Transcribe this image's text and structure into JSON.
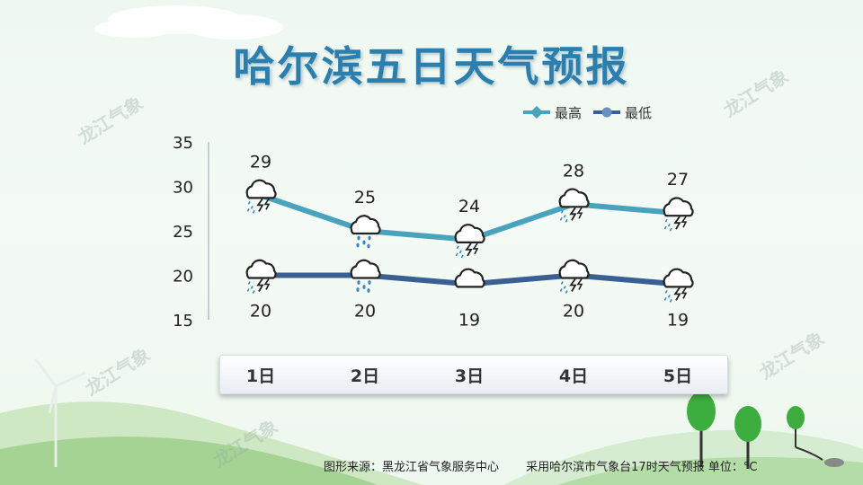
{
  "title": "哈尔滨五日天气预报",
  "watermark": "龙江气象",
  "footer": {
    "source": "图形来源：黑龙江省气象服务中心",
    "note": "采用哈尔滨市气象台17时天气预报 单位：°C"
  },
  "chart_data": {
    "type": "line",
    "categories": [
      "1日",
      "2日",
      "3日",
      "4日",
      "5日"
    ],
    "ylim": [
      15,
      35
    ],
    "yticks": [
      15,
      20,
      25,
      30,
      35
    ],
    "legend_position": "top-right",
    "series": [
      {
        "name": "最高",
        "values": [
          29,
          25,
          24,
          28,
          27
        ],
        "color": "#4aa3bd",
        "weather_icons": [
          "thunderstorm-icon",
          "rain-icon",
          "thunderstorm-icon",
          "thunderstorm-icon",
          "thunderstorm-icon"
        ]
      },
      {
        "name": "最低",
        "values": [
          20,
          20,
          19,
          20,
          19
        ],
        "color": "#3a5f92",
        "weather_icons": [
          "thunderstorm-icon",
          "rain-icon",
          "cloudy-icon",
          "thunderstorm-icon",
          "thunderstorm-icon"
        ]
      }
    ]
  }
}
